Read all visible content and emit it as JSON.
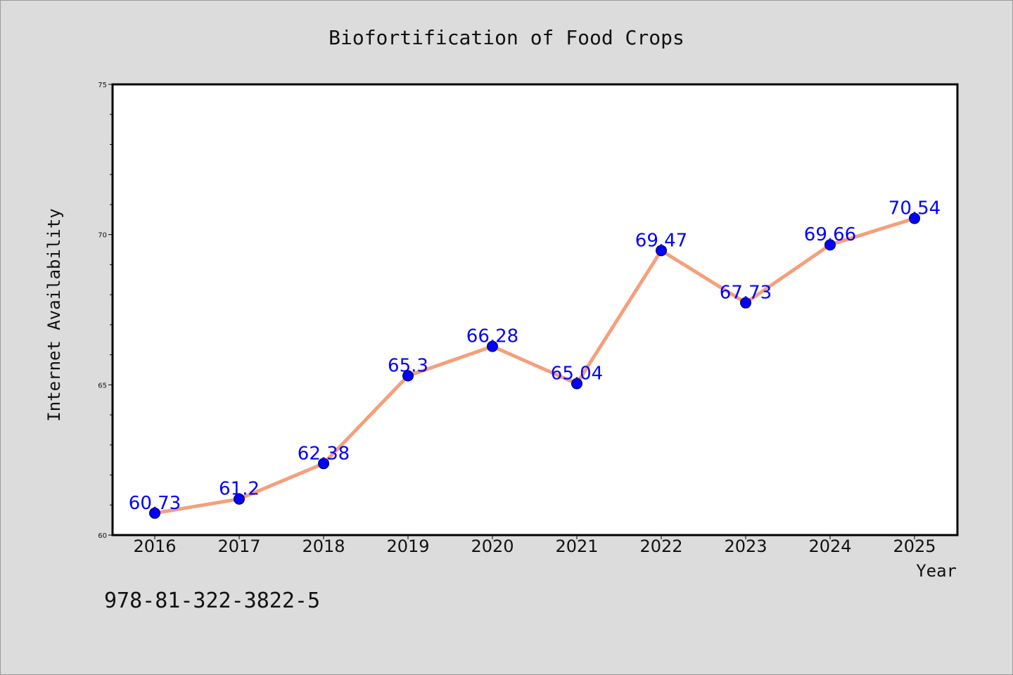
{
  "chart_data": {
    "type": "line",
    "title": "Biofortification of Food Crops",
    "xlabel": "Year",
    "ylabel": "Internet Availability",
    "categories": [
      "2016",
      "2017",
      "2018",
      "2019",
      "2020",
      "2021",
      "2022",
      "2023",
      "2024",
      "2025"
    ],
    "series": [
      {
        "values": [
          60.73,
          61.2,
          62.38,
          65.3,
          66.28,
          65.04,
          69.47,
          67.73,
          69.66,
          70.54
        ],
        "data_labels": [
          "60.73",
          "61.2",
          "62.38",
          "65.3",
          "66.28",
          "65.04",
          "69.47",
          "67.73",
          "69.66",
          "70.54"
        ],
        "line_color": "#f4a07c",
        "marker_color": "#0000ff"
      }
    ],
    "ylim": [
      60,
      75
    ],
    "yticks": [
      60,
      65,
      70,
      75
    ],
    "ytick_labels": [
      "60",
      "65",
      "70",
      "75"
    ],
    "grid": false,
    "legend": "none",
    "background_color": "#dcdcdc",
    "plot_background_color": "#ffffff",
    "label_color": "#0000ff"
  },
  "footer": {
    "isbn": "978-81-322-3822-5"
  }
}
